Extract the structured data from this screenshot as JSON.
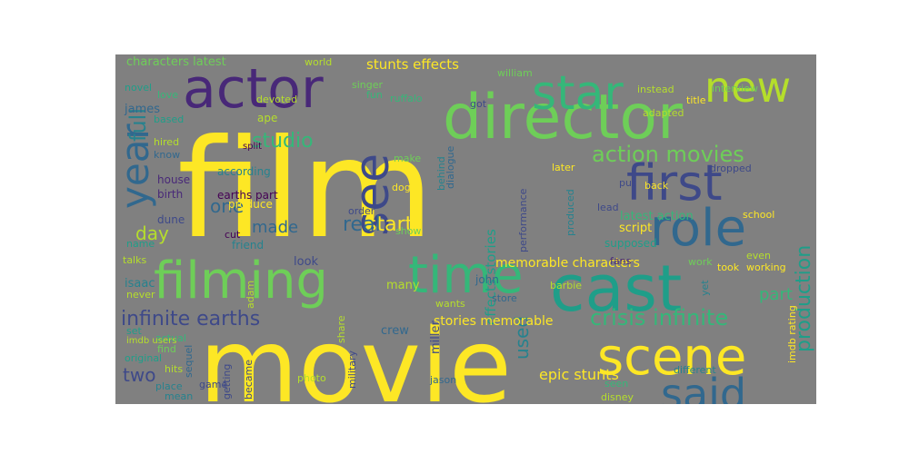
{
  "background_color": "#808080",
  "palette": {
    "yellow": "#fde725",
    "lime": "#b5de2b",
    "green": "#6ece58",
    "teal_green": "#35b779",
    "teal": "#1f9e89",
    "blue_teal": "#26828e",
    "blue": "#31688e",
    "indigo": "#3e4989",
    "purple": "#482878",
    "dark_purple": "#440154"
  },
  "words": [
    {
      "text": "film",
      "color": "#fde725"
    },
    {
      "text": "movie",
      "color": "#fde725"
    },
    {
      "text": "director",
      "color": "#6ece58"
    },
    {
      "text": "actor",
      "color": "#482878"
    },
    {
      "text": "cast",
      "color": "#1f9e89"
    },
    {
      "text": "filming",
      "color": "#6ece58"
    },
    {
      "text": "time",
      "color": "#35b779"
    },
    {
      "text": "scene",
      "color": "#fde725"
    },
    {
      "text": "role",
      "color": "#31688e"
    },
    {
      "text": "first",
      "color": "#3e4989"
    },
    {
      "text": "star",
      "color": "#35b779"
    },
    {
      "text": "new",
      "color": "#b5de2b"
    },
    {
      "text": "said",
      "color": "#31688e"
    },
    {
      "text": "see",
      "color": "#3e4989"
    },
    {
      "text": "year",
      "color": "#31688e"
    },
    {
      "text": "action movies",
      "color": "#6ece58"
    },
    {
      "text": "crisis infinite",
      "color": "#35b779"
    },
    {
      "text": "infinite earths",
      "color": "#3e4989"
    },
    {
      "text": "production",
      "color": "#1f9e89"
    },
    {
      "text": "full",
      "color": "#26828e"
    },
    {
      "text": "studio",
      "color": "#35b779"
    },
    {
      "text": "start",
      "color": "#fde725"
    },
    {
      "text": "real",
      "color": "#31688e"
    },
    {
      "text": "made",
      "color": "#31688e"
    },
    {
      "text": "day",
      "color": "#b5de2b"
    },
    {
      "text": "one",
      "color": "#31688e"
    },
    {
      "text": "part",
      "color": "#35b779"
    },
    {
      "text": "two",
      "color": "#3e4989"
    },
    {
      "text": "used",
      "color": "#26828e"
    },
    {
      "text": "epic stunts",
      "color": "#fde725"
    },
    {
      "text": "stunts effects",
      "color": "#fde725"
    },
    {
      "text": "effects stories",
      "color": "#1f9e89"
    },
    {
      "text": "stories memorable",
      "color": "#fde725"
    },
    {
      "text": "memorable characters",
      "color": "#fde725"
    },
    {
      "text": "characters latest",
      "color": "#6ece58"
    },
    {
      "text": "latest action",
      "color": "#35b779"
    },
    {
      "text": "earths part",
      "color": "#440154"
    },
    {
      "text": "according",
      "color": "#26828e"
    },
    {
      "text": "produce",
      "color": "#fde725"
    },
    {
      "text": "friend",
      "color": "#26828e"
    },
    {
      "text": "script",
      "color": "#fde725"
    },
    {
      "text": "supposed",
      "color": "#1f9e89"
    },
    {
      "text": "many",
      "color": "#b5de2b"
    },
    {
      "text": "look",
      "color": "#3e4989"
    },
    {
      "text": "crew",
      "color": "#31688e"
    },
    {
      "text": "miller",
      "color": "#3e4989"
    },
    {
      "text": "isaac",
      "color": "#26828e"
    },
    {
      "text": "james",
      "color": "#31688e"
    },
    {
      "text": "ape",
      "color": "#b5de2b"
    },
    {
      "text": "dune",
      "color": "#3e4989"
    },
    {
      "text": "birth",
      "color": "#482878"
    },
    {
      "text": "house",
      "color": "#482878"
    },
    {
      "text": "novel",
      "color": "#1f9e89"
    },
    {
      "text": "based",
      "color": "#1f9e89"
    },
    {
      "text": "love",
      "color": "#35b779"
    },
    {
      "text": "hired",
      "color": "#b5de2b"
    },
    {
      "text": "devoted",
      "color": "#b5de2b"
    },
    {
      "text": "know",
      "color": "#31688e"
    },
    {
      "text": "split",
      "color": "#440154"
    },
    {
      "text": "world",
      "color": "#b5de2b"
    },
    {
      "text": "singer",
      "color": "#6ece58"
    },
    {
      "text": "william",
      "color": "#6ece58"
    },
    {
      "text": "ruffalo",
      "color": "#35b779"
    },
    {
      "text": "fun",
      "color": "#35b779"
    },
    {
      "text": "got",
      "color": "#3e4989"
    },
    {
      "text": "make",
      "color": "#6ece58"
    },
    {
      "text": "dog",
      "color": "#fde725"
    },
    {
      "text": "behind",
      "color": "#26828e"
    },
    {
      "text": "order",
      "color": "#3e4989"
    },
    {
      "text": "show",
      "color": "#6ece58"
    },
    {
      "text": "dialogue",
      "color": "#31688e"
    },
    {
      "text": "produced",
      "color": "#26828e"
    },
    {
      "text": "later",
      "color": "#fde725"
    },
    {
      "text": "lead",
      "color": "#3e4989"
    },
    {
      "text": "put",
      "color": "#3e4989"
    },
    {
      "text": "back",
      "color": "#fde725"
    },
    {
      "text": "title",
      "color": "#fde725"
    },
    {
      "text": "instead",
      "color": "#b5de2b"
    },
    {
      "text": "adapted",
      "color": "#b5de2b"
    },
    {
      "text": "dropped",
      "color": "#3e4989"
    },
    {
      "text": "interview",
      "color": "#6ece58"
    },
    {
      "text": "school",
      "color": "#fde725"
    },
    {
      "text": "took",
      "color": "#fde725"
    },
    {
      "text": "even",
      "color": "#b5de2b"
    },
    {
      "text": "working",
      "color": "#fde725"
    },
    {
      "text": "work",
      "color": "#6ece58"
    },
    {
      "text": "fans",
      "color": "#482878"
    },
    {
      "text": "barbie",
      "color": "#b5de2b"
    },
    {
      "text": "wants",
      "color": "#b5de2b"
    },
    {
      "text": "store",
      "color": "#31688e"
    },
    {
      "text": "john",
      "color": "#31688e"
    },
    {
      "text": "jason",
      "color": "#31688e"
    },
    {
      "text": "seen",
      "color": "#35b779"
    },
    {
      "text": "disney",
      "color": "#b5de2b"
    },
    {
      "text": "different",
      "color": "#26828e"
    },
    {
      "text": "imdb rating",
      "color": "#fde725"
    },
    {
      "text": "talks",
      "color": "#b5de2b"
    },
    {
      "text": "never",
      "color": "#b5de2b"
    },
    {
      "text": "actual",
      "color": "#35b779"
    },
    {
      "text": "original",
      "color": "#1f9e89"
    },
    {
      "text": "find",
      "color": "#6ece58"
    },
    {
      "text": "hits",
      "color": "#b5de2b"
    },
    {
      "text": "place",
      "color": "#26828e"
    },
    {
      "text": "game",
      "color": "#3e4989"
    },
    {
      "text": "mean",
      "color": "#26828e"
    },
    {
      "text": "became",
      "color": "#3e4989"
    },
    {
      "text": "getting",
      "color": "#3e4989"
    },
    {
      "text": "sequel",
      "color": "#31688e"
    },
    {
      "text": "photo",
      "color": "#b5de2b"
    },
    {
      "text": "military",
      "color": "#3e4989"
    },
    {
      "text": "share",
      "color": "#b5de2b"
    },
    {
      "text": "adam",
      "color": "#b5de2b"
    },
    {
      "text": "cut",
      "color": "#440154"
    },
    {
      "text": "name",
      "color": "#1f9e89"
    },
    {
      "text": "performance",
      "color": "#3e4989"
    },
    {
      "text": "yet",
      "color": "#26828e"
    },
    {
      "text": "set",
      "color": "#1f9e89"
    },
    {
      "text": "imdb users",
      "color": "#b5de2b"
    }
  ]
}
